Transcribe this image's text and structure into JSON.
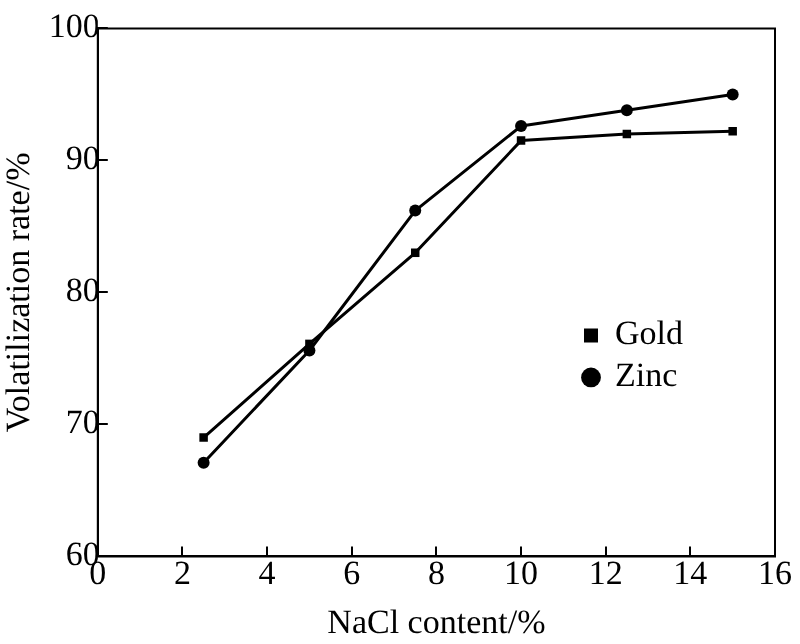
{
  "chart_data": {
    "type": "line",
    "xlabel": "NaCl content/%",
    "ylabel": "Volatilization rate/%",
    "x": [
      2.5,
      5,
      7.5,
      10,
      12.5,
      15
    ],
    "series": [
      {
        "name": "Gold",
        "color": "#000000",
        "marker": "square",
        "values": [
          69.0,
          76.1,
          83.0,
          91.5,
          92.0,
          92.2
        ]
      },
      {
        "name": "Zinc",
        "color": "#000000",
        "marker": "circle",
        "values": [
          67.1,
          75.6,
          86.2,
          92.6,
          93.8,
          95.0
        ]
      }
    ],
    "xlim": [
      0,
      16
    ],
    "xticks": [
      0,
      2,
      4,
      6,
      8,
      10,
      12,
      14,
      16
    ],
    "ylim": [
      60,
      100
    ],
    "yticks": [
      60,
      70,
      80,
      90,
      100
    ],
    "grid": false,
    "legend": "bottom right",
    "line_style": "solid"
  }
}
